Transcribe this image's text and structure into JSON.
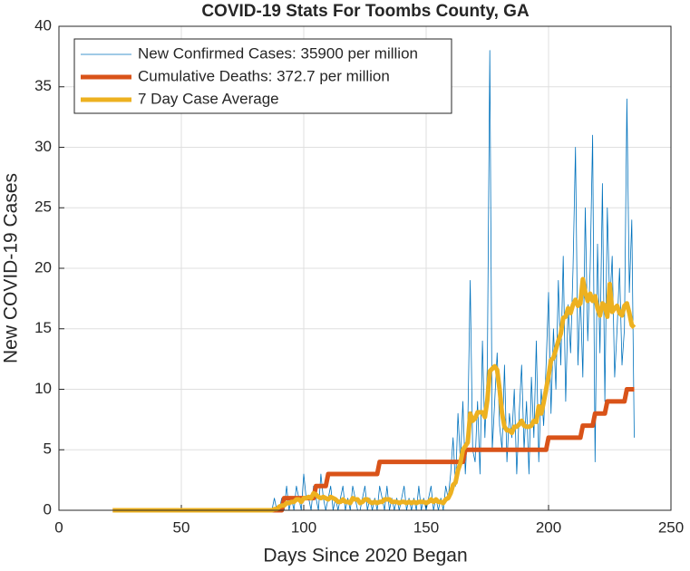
{
  "chart_data": {
    "type": "line",
    "title": "COVID-19 Stats For Toombs County, GA",
    "xlabel": "Days Since 2020 Began",
    "ylabel": "New COVID-19 Cases",
    "xlim": [
      0,
      250
    ],
    "xticks": [
      0,
      50,
      100,
      150,
      200,
      250
    ],
    "ylim": [
      0,
      40
    ],
    "yticks": [
      0,
      5,
      10,
      15,
      20,
      25,
      30,
      35,
      40
    ],
    "grid": true,
    "legend": "upper left",
    "x": [
      22,
      23,
      24,
      25,
      26,
      27,
      28,
      29,
      30,
      31,
      32,
      33,
      34,
      35,
      36,
      37,
      38,
      39,
      40,
      41,
      42,
      43,
      44,
      45,
      46,
      47,
      48,
      49,
      50,
      51,
      52,
      53,
      54,
      55,
      56,
      57,
      58,
      59,
      60,
      61,
      62,
      63,
      64,
      65,
      66,
      67,
      68,
      69,
      70,
      71,
      72,
      73,
      74,
      75,
      76,
      77,
      78,
      79,
      80,
      81,
      82,
      83,
      84,
      85,
      86,
      87,
      88,
      89,
      90,
      91,
      92,
      93,
      94,
      95,
      96,
      97,
      98,
      99,
      100,
      101,
      102,
      103,
      104,
      105,
      106,
      107,
      108,
      109,
      110,
      111,
      112,
      113,
      114,
      115,
      116,
      117,
      118,
      119,
      120,
      121,
      122,
      123,
      124,
      125,
      126,
      127,
      128,
      129,
      130,
      131,
      132,
      133,
      134,
      135,
      136,
      137,
      138,
      139,
      140,
      141,
      142,
      143,
      144,
      145,
      146,
      147,
      148,
      149,
      150,
      151,
      152,
      153,
      154,
      155,
      156,
      157,
      158,
      159,
      160,
      161,
      162,
      163,
      164,
      165,
      166,
      167,
      168,
      169,
      170,
      171,
      172,
      173,
      174,
      175,
      176,
      177,
      178,
      179,
      180,
      181,
      182,
      183,
      184,
      185,
      186,
      187,
      188,
      189,
      190,
      191,
      192,
      193,
      194,
      195,
      196,
      197,
      198,
      199,
      200,
      201,
      202,
      203,
      204,
      205,
      206,
      207,
      208,
      209,
      210,
      211,
      212,
      213,
      214,
      215,
      216,
      217,
      218,
      219,
      220,
      221,
      222,
      223,
      224,
      225,
      226,
      227,
      228,
      229,
      230,
      231,
      232,
      233,
      234,
      235
    ],
    "series": [
      {
        "name": "New Confirmed Cases: 35900 per million",
        "color": "#0072BD",
        "values": [
          0,
          0,
          0,
          0,
          0,
          0,
          0,
          0,
          0,
          0,
          0,
          0,
          0,
          0,
          0,
          0,
          0,
          0,
          0,
          0,
          0,
          0,
          0,
          0,
          0,
          0,
          0,
          0,
          0,
          0,
          0,
          0,
          0,
          0,
          0,
          0,
          0,
          0,
          0,
          0,
          0,
          0,
          0,
          0,
          0,
          0,
          0,
          0,
          0,
          0,
          0,
          0,
          0,
          0,
          0,
          0,
          0,
          0,
          0,
          0,
          0,
          0,
          0,
          0,
          0,
          0,
          1,
          0,
          0,
          1,
          0,
          2,
          0,
          1,
          0,
          2,
          1,
          0,
          3,
          1,
          1,
          0,
          2,
          1,
          0,
          3,
          1,
          0,
          1,
          2,
          0,
          1,
          0,
          1,
          2,
          0,
          1,
          0,
          2,
          1,
          0,
          0,
          1,
          2,
          0,
          1,
          0,
          1,
          0,
          2,
          1,
          0,
          2,
          0,
          1,
          0,
          1,
          0,
          1,
          2,
          0,
          1,
          0,
          1,
          0,
          2,
          0,
          1,
          0,
          1,
          2,
          0,
          1,
          0,
          1,
          0,
          2,
          1,
          3,
          6,
          2,
          8,
          4,
          9,
          3,
          7,
          19,
          5,
          4,
          9,
          3,
          14,
          6,
          12,
          38,
          5,
          9,
          13,
          7,
          5,
          12,
          4,
          8,
          6,
          10,
          3,
          8,
          12,
          5,
          9,
          3,
          11,
          6,
          14,
          4,
          10,
          7,
          12,
          18,
          8,
          15,
          10,
          19,
          12,
          21,
          9,
          17,
          13,
          20,
          30,
          12,
          18,
          11,
          25,
          14,
          20,
          31,
          4,
          22,
          13,
          27,
          9,
          25,
          17,
          21,
          11,
          15,
          20,
          12,
          15,
          34,
          18,
          24,
          6
        ]
      },
      {
        "name": "Cumulative Deaths: 372.7 per million",
        "color": "#D95319",
        "values": [
          0,
          0,
          0,
          0,
          0,
          0,
          0,
          0,
          0,
          0,
          0,
          0,
          0,
          0,
          0,
          0,
          0,
          0,
          0,
          0,
          0,
          0,
          0,
          0,
          0,
          0,
          0,
          0,
          0,
          0,
          0,
          0,
          0,
          0,
          0,
          0,
          0,
          0,
          0,
          0,
          0,
          0,
          0,
          0,
          0,
          0,
          0,
          0,
          0,
          0,
          0,
          0,
          0,
          0,
          0,
          0,
          0,
          0,
          0,
          0,
          0,
          0,
          0,
          0,
          0,
          0,
          0,
          0,
          0,
          0,
          1,
          1,
          1,
          1,
          1,
          1,
          1,
          1,
          1,
          1,
          1,
          1,
          1,
          2,
          2,
          2,
          2,
          2,
          3,
          3,
          3,
          3,
          3,
          3,
          3,
          3,
          3,
          3,
          3,
          3,
          3,
          3,
          3,
          3,
          3,
          3,
          3,
          3,
          3,
          4,
          4,
          4,
          4,
          4,
          4,
          4,
          4,
          4,
          4,
          4,
          4,
          4,
          4,
          4,
          4,
          4,
          4,
          4,
          4,
          4,
          4,
          4,
          4,
          4,
          4,
          4,
          4,
          4,
          4,
          4,
          4,
          4,
          4,
          4,
          5,
          5,
          5,
          5,
          5,
          5,
          5,
          5,
          5,
          5,
          5,
          5,
          5,
          5,
          5,
          5,
          5,
          5,
          5,
          5,
          5,
          5,
          5,
          5,
          5,
          5,
          5,
          5,
          5,
          5,
          5,
          5,
          5,
          5,
          6,
          6,
          6,
          6,
          6,
          6,
          6,
          6,
          6,
          6,
          6,
          6,
          6,
          6,
          7,
          7,
          7,
          7,
          7,
          8,
          8,
          8,
          8,
          8,
          9,
          9,
          9,
          9,
          9,
          9,
          9,
          9,
          10,
          10,
          10,
          10
        ]
      },
      {
        "name": "7 Day Case Average",
        "color": "#EDB120",
        "values": [
          0,
          0,
          0,
          0,
          0,
          0,
          0,
          0,
          0,
          0,
          0,
          0,
          0,
          0,
          0,
          0,
          0,
          0,
          0,
          0,
          0,
          0,
          0,
          0,
          0,
          0,
          0,
          0,
          0,
          0,
          0,
          0,
          0,
          0,
          0,
          0,
          0,
          0,
          0,
          0,
          0,
          0,
          0,
          0,
          0,
          0,
          0,
          0,
          0,
          0,
          0,
          0,
          0,
          0,
          0,
          0,
          0,
          0,
          0,
          0,
          0,
          0,
          0,
          0,
          0,
          0,
          0.1,
          0.1,
          0.3,
          0.4,
          0.4,
          0.6,
          0.6,
          0.7,
          0.7,
          0.9,
          0.9,
          0.7,
          1.0,
          1.0,
          1.1,
          1.0,
          1.4,
          1.3,
          1.1,
          1.0,
          1.1,
          1.0,
          0.9,
          1.1,
          1.0,
          0.9,
          0.7,
          0.7,
          0.9,
          0.7,
          0.7,
          0.6,
          1.0,
          0.9,
          0.9,
          0.6,
          0.7,
          0.9,
          0.9,
          0.7,
          0.6,
          0.7,
          0.6,
          0.7,
          0.7,
          0.9,
          0.9,
          0.9,
          0.7,
          0.7,
          0.7,
          0.6,
          0.7,
          0.7,
          0.6,
          0.7,
          0.6,
          0.7,
          0.6,
          0.7,
          0.7,
          0.7,
          0.6,
          0.7,
          0.9,
          0.7,
          0.9,
          0.7,
          0.7,
          0.6,
          0.9,
          1.0,
          1.4,
          2.1,
          2.3,
          3.3,
          3.9,
          5.0,
          5.3,
          5.6,
          8.0,
          7.4,
          7.6,
          8.1,
          8.1,
          8.1,
          7.7,
          9.1,
          11.5,
          11.7,
          11.9,
          11.6,
          10.0,
          8.0,
          6.9,
          6.6,
          6.6,
          6.4,
          6.9,
          6.9,
          7.1,
          7.4,
          7.0,
          6.9,
          6.9,
          7.0,
          7.4,
          7.3,
          8.6,
          8.0,
          8.9,
          10.0,
          11.1,
          12.4,
          12.6,
          13.3,
          14.0,
          14.6,
          15.9,
          16.0,
          16.7,
          16.3,
          17.0,
          17.4,
          16.9,
          17.1,
          19.1,
          18.0,
          17.3,
          17.9,
          17.3,
          17.7,
          16.7,
          16.1,
          17.1,
          16.9,
          16.0,
          18.7,
          16.4,
          16.7,
          16.9,
          16.3,
          16.1,
          16.9,
          17.1,
          16.3,
          15.3,
          15.1
        ]
      }
    ]
  }
}
